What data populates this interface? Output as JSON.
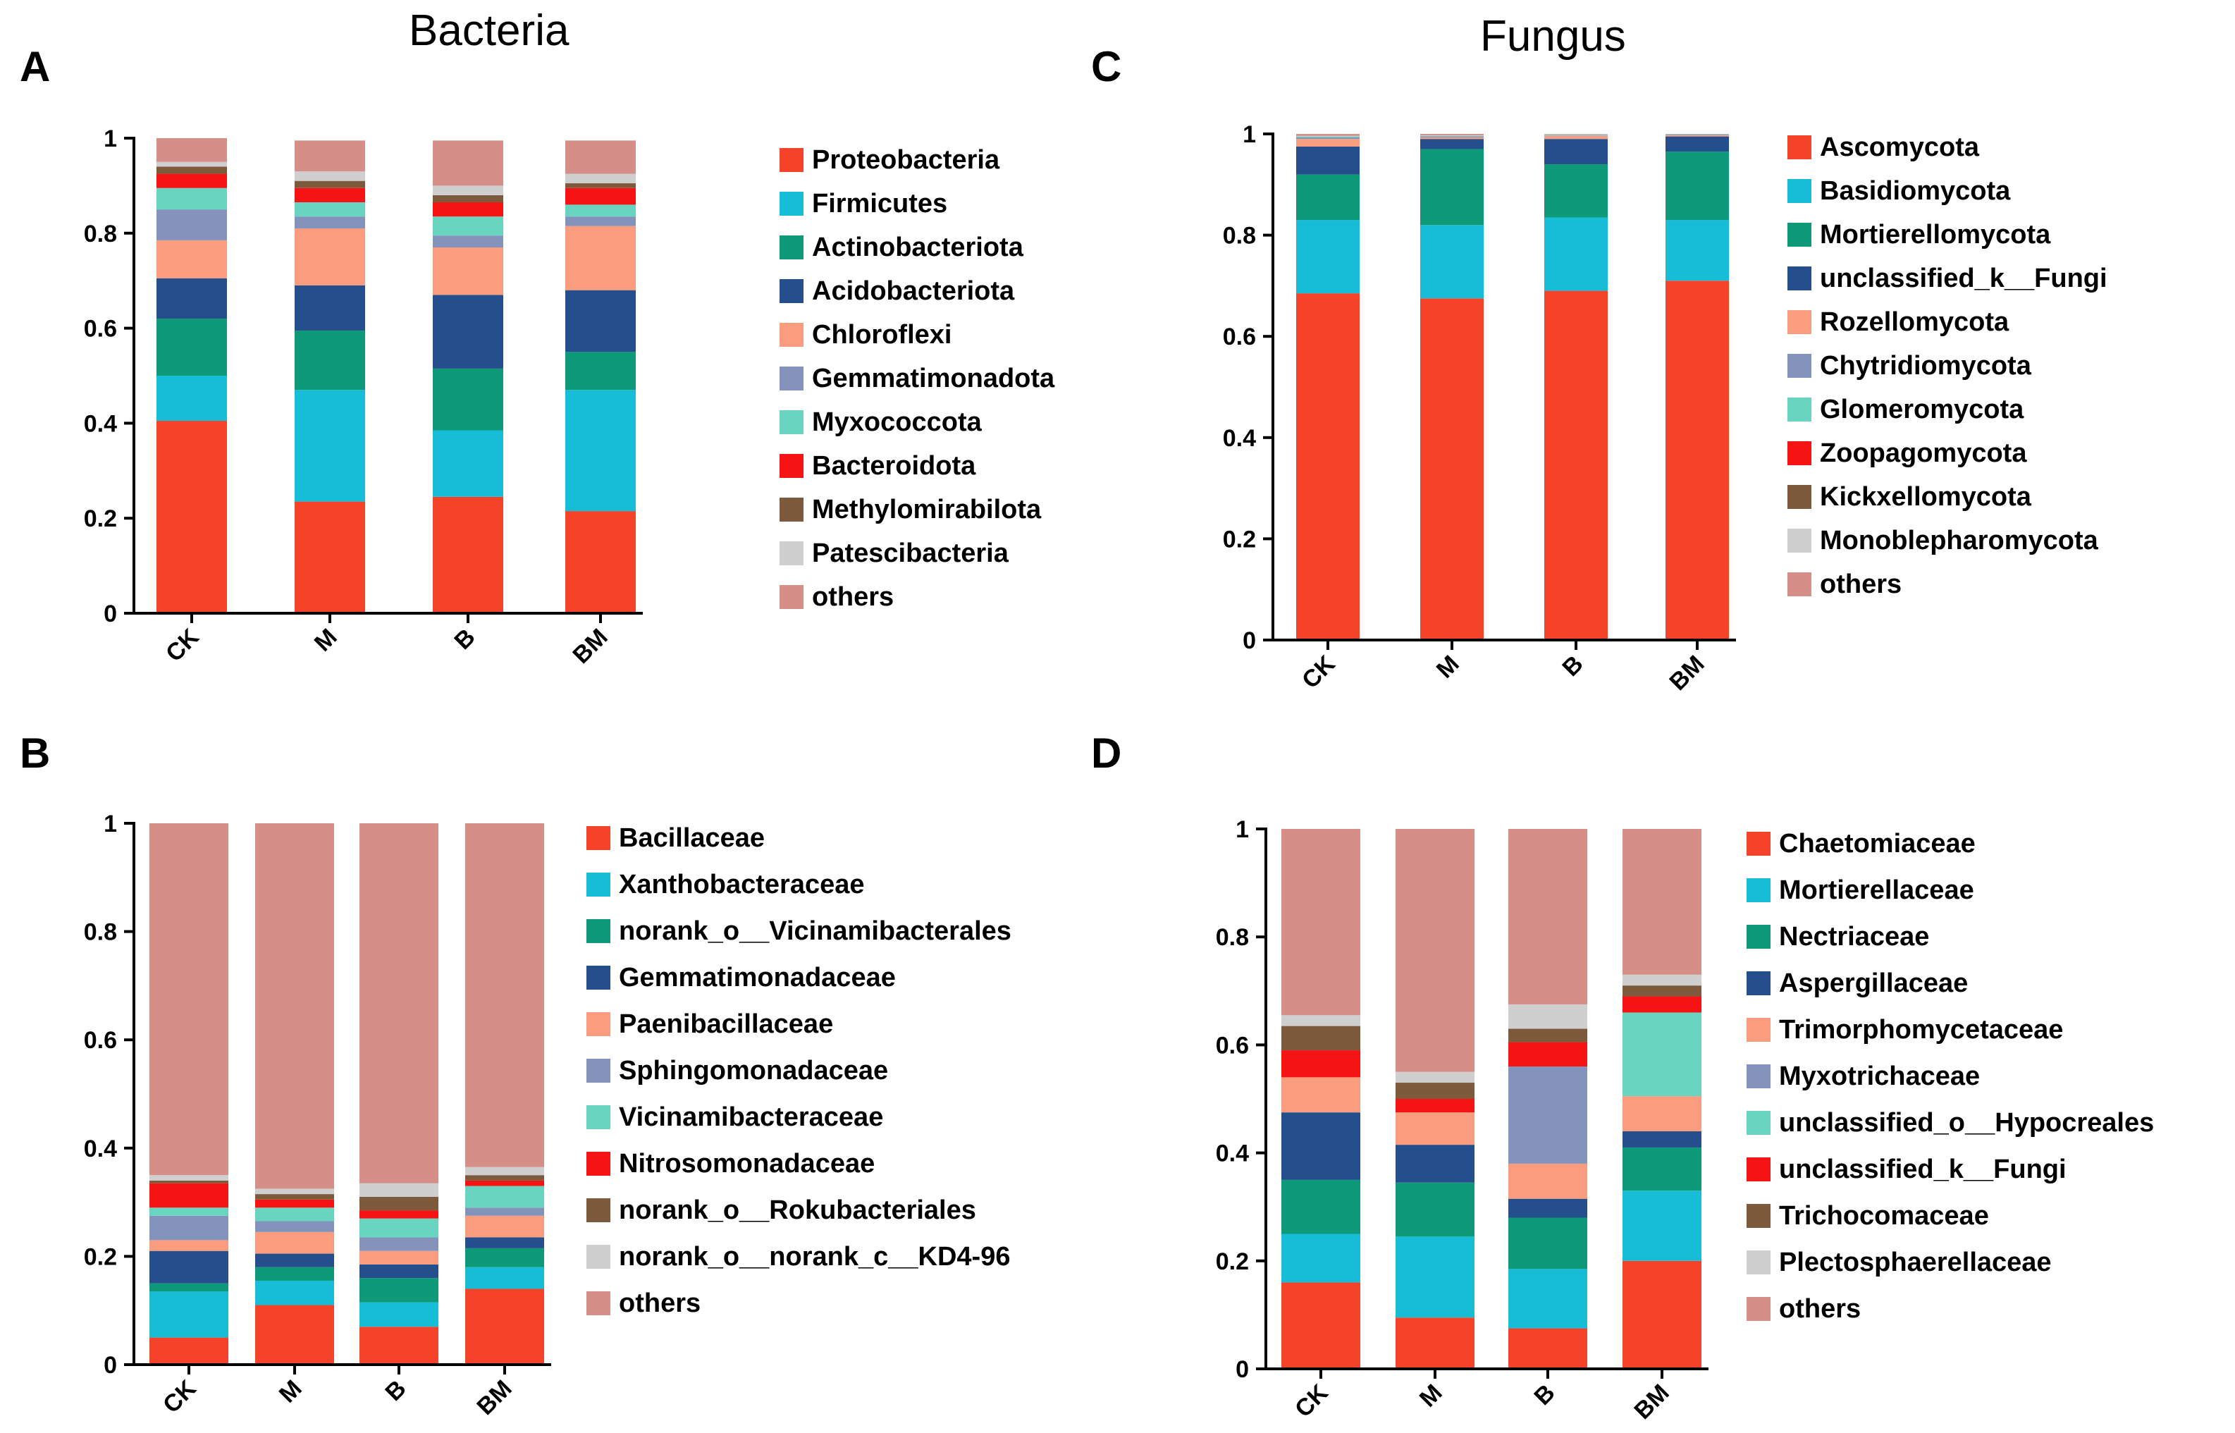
{
  "headings": {
    "bacteria": "Bacteria",
    "fungus": "Fungus"
  },
  "chart_data": [
    {
      "panel": "A",
      "type": "bar",
      "stacked": true,
      "title": "",
      "xlabel": "",
      "ylabel": "",
      "ylim": [
        0,
        1
      ],
      "yticks": [
        "0",
        "0.2",
        "0.4",
        "0.6",
        "0.8",
        "1"
      ],
      "categories": [
        "CK",
        "M",
        "B",
        "BM"
      ],
      "series": [
        {
          "name": "Proteobacteria",
          "color": "#F5432A",
          "values": [
            0.405,
            0.235,
            0.245,
            0.215
          ]
        },
        {
          "name": "Firmicutes",
          "color": "#17BCD6",
          "values": [
            0.095,
            0.235,
            0.14,
            0.255
          ]
        },
        {
          "name": "Actinobacteriota",
          "color": "#0E9A78",
          "values": [
            0.12,
            0.125,
            0.13,
            0.08
          ]
        },
        {
          "name": "Acidobacteriota",
          "color": "#244E8C",
          "values": [
            0.085,
            0.095,
            0.155,
            0.13
          ]
        },
        {
          "name": "Chloroflexi",
          "color": "#FA9C7E",
          "values": [
            0.08,
            0.12,
            0.1,
            0.135
          ]
        },
        {
          "name": "Gemmatimonadota",
          "color": "#8493BC",
          "values": [
            0.065,
            0.025,
            0.025,
            0.02
          ]
        },
        {
          "name": "Myxococcota",
          "color": "#69D4C0",
          "values": [
            0.045,
            0.03,
            0.04,
            0.025
          ]
        },
        {
          "name": "Bacteroidota",
          "color": "#F51314",
          "values": [
            0.03,
            0.03,
            0.03,
            0.035
          ]
        },
        {
          "name": "Methylomirabilota",
          "color": "#7E5A3C",
          "values": [
            0.015,
            0.015,
            0.015,
            0.01
          ]
        },
        {
          "name": "Patescibacteria",
          "color": "#CFCFCF",
          "values": [
            0.01,
            0.02,
            0.02,
            0.02
          ]
        },
        {
          "name": "others",
          "color": "#D68F88",
          "values": [
            0.05,
            0.065,
            0.095,
            0.07
          ]
        }
      ]
    },
    {
      "panel": "B",
      "type": "bar",
      "stacked": true,
      "title": "",
      "xlabel": "",
      "ylabel": "",
      "ylim": [
        0,
        1
      ],
      "yticks": [
        "0",
        "0.2",
        "0.4",
        "0.6",
        "0.8",
        "1"
      ],
      "categories": [
        "CK",
        "M",
        "B",
        "BM"
      ],
      "series": [
        {
          "name": "Bacillaceae",
          "color": "#F5432A",
          "values": [
            0.05,
            0.11,
            0.07,
            0.14
          ]
        },
        {
          "name": "Xanthobacteraceae",
          "color": "#17BCD6",
          "values": [
            0.085,
            0.045,
            0.045,
            0.04
          ]
        },
        {
          "name": "norank_o__Vicinamibacterales",
          "color": "#0E9A78",
          "values": [
            0.015,
            0.025,
            0.045,
            0.035
          ]
        },
        {
          "name": "Gemmatimonadaceae",
          "color": "#244E8C",
          "values": [
            0.06,
            0.025,
            0.025,
            0.02
          ]
        },
        {
          "name": "Paenibacillaceae",
          "color": "#FA9C7E",
          "values": [
            0.02,
            0.04,
            0.025,
            0.04
          ]
        },
        {
          "name": "Sphingomonadaceae",
          "color": "#8493BC",
          "values": [
            0.045,
            0.02,
            0.025,
            0.015
          ]
        },
        {
          "name": "Vicinamibacteraceae",
          "color": "#69D4C0",
          "values": [
            0.015,
            0.025,
            0.035,
            0.04
          ]
        },
        {
          "name": "Nitrosomonadaceae",
          "color": "#F51314",
          "values": [
            0.045,
            0.015,
            0.015,
            0.01
          ]
        },
        {
          "name": "norank_o__Rokubacteriales",
          "color": "#7E5A3C",
          "values": [
            0.005,
            0.01,
            0.025,
            0.01
          ]
        },
        {
          "name": "norank_o__norank_c__KD4-96",
          "color": "#CFCFCF",
          "values": [
            0.01,
            0.01,
            0.025,
            0.015
          ]
        },
        {
          "name": "others",
          "color": "#D68F88",
          "values": [
            0.65,
            0.675,
            0.665,
            0.635
          ]
        }
      ]
    },
    {
      "panel": "C",
      "type": "bar",
      "stacked": true,
      "title": "",
      "xlabel": "",
      "ylabel": "",
      "ylim": [
        0,
        1
      ],
      "yticks": [
        "0",
        "0.2",
        "0.4",
        "0.6",
        "0.8",
        "1"
      ],
      "categories": [
        "CK",
        "M",
        "B",
        "BM"
      ],
      "series": [
        {
          "name": "Ascomycota",
          "color": "#F5432A",
          "values": [
            0.685,
            0.675,
            0.69,
            0.71
          ]
        },
        {
          "name": "Basidiomycota",
          "color": "#17BCD6",
          "values": [
            0.145,
            0.145,
            0.145,
            0.12
          ]
        },
        {
          "name": "Mortierellomycota",
          "color": "#0E9A78",
          "values": [
            0.09,
            0.15,
            0.105,
            0.135
          ]
        },
        {
          "name": "unclassified_k__Fungi",
          "color": "#244E8C",
          "values": [
            0.055,
            0.02,
            0.05,
            0.03
          ]
        },
        {
          "name": "Rozellomycota",
          "color": "#FA9C7E",
          "values": [
            0.015,
            0.003,
            0.006,
            0.002
          ]
        },
        {
          "name": "Chytridiomycota",
          "color": "#8493BC",
          "values": [
            0.003,
            0.002,
            0.001,
            0.001
          ]
        },
        {
          "name": "Glomeromycota",
          "color": "#69D4C0",
          "values": [
            0.002,
            0.001,
            0.001,
            0.001
          ]
        },
        {
          "name": "Zoopagomycota",
          "color": "#F51314",
          "values": [
            0.0,
            0.0,
            0.0,
            0.0
          ]
        },
        {
          "name": "Kickxellomycota",
          "color": "#7E5A3C",
          "values": [
            0.0,
            0.0,
            0.0,
            0.0
          ]
        },
        {
          "name": "Monoblepharomycota",
          "color": "#CFCFCF",
          "values": [
            0.001,
            0.001,
            0.001,
            0.0
          ]
        },
        {
          "name": "others",
          "color": "#D68F88",
          "values": [
            0.004,
            0.003,
            0.001,
            0.001
          ]
        }
      ]
    },
    {
      "panel": "D",
      "type": "bar",
      "stacked": true,
      "title": "",
      "xlabel": "",
      "ylabel": "",
      "ylim": [
        0,
        1
      ],
      "yticks": [
        "0",
        "0.2",
        "0.4",
        "0.6",
        "0.8",
        "1"
      ],
      "categories": [
        "CK",
        "M",
        "B",
        "BM"
      ],
      "series": [
        {
          "name": "Chaetomiaceae",
          "color": "#F5432A",
          "values": [
            0.16,
            0.095,
            0.075,
            0.2
          ]
        },
        {
          "name": "Mortierellaceae",
          "color": "#17BCD6",
          "values": [
            0.09,
            0.15,
            0.11,
            0.13
          ]
        },
        {
          "name": "Nectriaceae",
          "color": "#0E9A78",
          "values": [
            0.1,
            0.1,
            0.095,
            0.08
          ]
        },
        {
          "name": "Aspergillaceae",
          "color": "#244E8C",
          "values": [
            0.125,
            0.07,
            0.035,
            0.03
          ]
        },
        {
          "name": "Trimorphomycetaceae",
          "color": "#FA9C7E",
          "values": [
            0.065,
            0.06,
            0.065,
            0.065
          ]
        },
        {
          "name": "Myxotrichaceae",
          "color": "#8493BC",
          "values": [
            0.0,
            0.0,
            0.18,
            0.0
          ]
        },
        {
          "name": "unclassified_o__Hypocreales",
          "color": "#69D4C0",
          "values": [
            0.0,
            0.0,
            0.0,
            0.155
          ]
        },
        {
          "name": "unclassified_k__Fungi",
          "color": "#F51314",
          "values": [
            0.05,
            0.025,
            0.045,
            0.03
          ]
        },
        {
          "name": "Trichocomaceae",
          "color": "#7E5A3C",
          "values": [
            0.045,
            0.03,
            0.025,
            0.02
          ]
        },
        {
          "name": "Plectosphaerellaceae",
          "color": "#CFCFCF",
          "values": [
            0.02,
            0.02,
            0.045,
            0.02
          ]
        },
        {
          "name": "others",
          "color": "#D68F88",
          "values": [
            0.345,
            0.45,
            0.325,
            0.27
          ]
        }
      ]
    }
  ]
}
